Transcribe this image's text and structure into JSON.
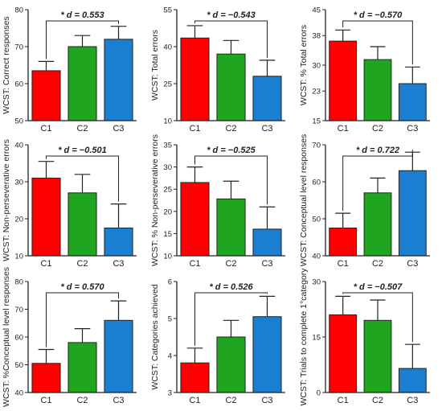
{
  "chart_data": [
    {
      "type": "bar",
      "ylabel": "WCST: Correct responses",
      "categories": [
        "C1",
        "C2",
        "C3"
      ],
      "values": [
        63.5,
        70,
        72
      ],
      "errors": [
        2.5,
        3,
        3.5
      ],
      "ylim": [
        50,
        80
      ],
      "yticks": [
        "50",
        "60",
        "70",
        "80"
      ],
      "annotation": "* d = 0.553"
    },
    {
      "type": "bar",
      "ylabel": "WCST: Total errors",
      "categories": [
        "C1",
        "C2",
        "C3"
      ],
      "values": [
        43.5,
        37,
        28
      ],
      "errors": [
        5,
        5.5,
        6.5
      ],
      "ylim": [
        10,
        55
      ],
      "yticks": [
        "10",
        "25",
        "40",
        "55"
      ],
      "annotation": "* d = −0.543"
    },
    {
      "type": "bar",
      "ylabel": "WCST: % Total errors",
      "categories": [
        "C1",
        "C2",
        "C3"
      ],
      "values": [
        36.5,
        31.5,
        25
      ],
      "errors": [
        3,
        3.5,
        4.5
      ],
      "ylim": [
        15,
        45
      ],
      "yticks": [
        "15",
        "23",
        "30",
        "38",
        "45"
      ],
      "annotation": "* d = −0.570"
    },
    {
      "type": "bar",
      "ylabel": "WCST: Non-perseverative errors",
      "categories": [
        "C1",
        "C2",
        "C3"
      ],
      "values": [
        31,
        27,
        17.5
      ],
      "errors": [
        4.5,
        5,
        6.5
      ],
      "ylim": [
        10,
        40
      ],
      "yticks": [
        "10",
        "20",
        "30",
        "40"
      ],
      "annotation": "* d = −0.501"
    },
    {
      "type": "bar",
      "ylabel": "WCST: % Non-perseverative errors",
      "categories": [
        "C1",
        "C2",
        "C3"
      ],
      "values": [
        26.5,
        22.8,
        16
      ],
      "errors": [
        3.5,
        4,
        5
      ],
      "ylim": [
        10,
        35
      ],
      "yticks": [
        "10",
        "15",
        "20",
        "25",
        "30",
        "35"
      ],
      "annotation": "* d = −0.525"
    },
    {
      "type": "bar",
      "ylabel": "WCST: Conceptual level responses",
      "categories": [
        "C1",
        "C2",
        "C3"
      ],
      "values": [
        47.5,
        57,
        63
      ],
      "errors": [
        4,
        4,
        5
      ],
      "ylim": [
        40,
        70
      ],
      "yticks": [
        "40",
        "50",
        "60",
        "70"
      ],
      "annotation": "* d = 0.722"
    },
    {
      "type": "bar",
      "ylabel": "WCST: %Conceptual level responses",
      "categories": [
        "C1",
        "C2",
        "C3"
      ],
      "values": [
        50.5,
        58,
        66
      ],
      "errors": [
        5,
        5,
        7
      ],
      "ylim": [
        40,
        80
      ],
      "yticks": [
        "40",
        "50",
        "60",
        "70",
        "80"
      ],
      "annotation": "* d = 0.570"
    },
    {
      "type": "bar",
      "ylabel": "WCST: Categories achieved",
      "categories": [
        "C1",
        "C2",
        "C3"
      ],
      "values": [
        3.8,
        4.5,
        5.05
      ],
      "errors": [
        0.4,
        0.45,
        0.55
      ],
      "ylim": [
        3,
        6
      ],
      "yticks": [
        "3",
        "4",
        "5",
        "6"
      ],
      "annotation": "* d = 0.526"
    },
    {
      "type": "bar",
      "ylabel": "WCST: Trials to complete 1°category",
      "categories": [
        "C1",
        "C2",
        "C3"
      ],
      "values": [
        21,
        19.5,
        6.5
      ],
      "errors": [
        5,
        5.5,
        6.5
      ],
      "ylim": [
        0,
        30
      ],
      "yticks": [
        "0",
        "15",
        "30"
      ],
      "annotation": "* d = −0.507"
    }
  ],
  "colors": {
    "C1": "#ff0000",
    "C2": "#1fa51f",
    "C3": "#1a7fd1",
    "axis": "#222222"
  }
}
